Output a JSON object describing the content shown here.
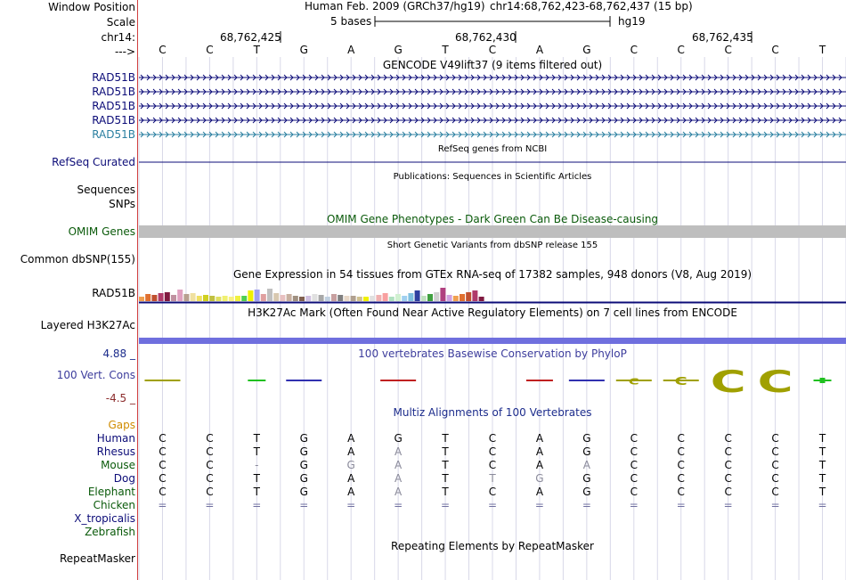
{
  "header": {
    "window_position_label": "Window Position",
    "assembly": "Human Feb. 2009 (GRCh37/hg19)",
    "position": "chr14:68,762,423-68,762,437 (15 bp)",
    "scale_label": "Scale",
    "scale_text": "5 bases",
    "scale_db": "hg19",
    "chrom_label": "chr14:",
    "coords": [
      "68,762,425",
      "68,762,430",
      "68,762,435"
    ],
    "strand_label": "--->",
    "bases": [
      "C",
      "C",
      "T",
      "G",
      "A",
      "G",
      "T",
      "C",
      "A",
      "G",
      "C",
      "C",
      "C",
      "C",
      "T"
    ]
  },
  "tracks": {
    "gencode_title": "GENCODE V49lift37 (9 items filtered out)",
    "gencode_items": [
      "RAD51B",
      "RAD51B",
      "RAD51B",
      "RAD51B",
      "RAD51B"
    ],
    "refseq_title": "RefSeq genes from NCBI",
    "refseq_label": "RefSeq Curated",
    "pubs_title": "Publications: Sequences in Scientific Articles",
    "sequences_label": "Sequences",
    "snps_label": "SNPs",
    "omim_title": "OMIM Gene Phenotypes - Dark Green Can Be Disease-causing",
    "omim_label": "OMIM Genes",
    "dbsnp_title": "Short Genetic Variants from dbSNP release 155",
    "dbsnp_label": "Common dbSNP(155)",
    "gtex_title": "Gene Expression in 54 tissues from GTEx RNA-seq of 17382 samples, 948 donors (V8, Aug 2019)",
    "gtex_label": "RAD51B",
    "h3k27_title": "H3K27Ac Mark (Often Found Near Active Regulatory Elements) on 7 cell lines from ENCODE",
    "h3k27_label": "Layered H3K27Ac",
    "phylop_title": "100 vertebrates Basewise Conservation by PhyloP",
    "phylop_max": "4.88 _",
    "phylop_label": "100 Vert. Cons",
    "phylop_min": "-4.5 _",
    "multiz_title": "Multiz Alignments of 100 Vertebrates",
    "gaps_label": "Gaps",
    "species": [
      {
        "name": "Human",
        "bases": [
          "C",
          "C",
          "T",
          "G",
          "A",
          "G",
          "T",
          "C",
          "A",
          "G",
          "C",
          "C",
          "C",
          "C",
          "T"
        ]
      },
      {
        "name": "Rhesus",
        "bases": [
          "C",
          "C",
          "T",
          "G",
          "A",
          "A",
          "T",
          "C",
          "A",
          "G",
          "C",
          "C",
          "C",
          "C",
          "T"
        ]
      },
      {
        "name": "Mouse",
        "bases": [
          "C",
          "C",
          "-",
          "G",
          "G",
          "A",
          "T",
          "C",
          "A",
          "A",
          "C",
          "C",
          "C",
          "C",
          "T"
        ]
      },
      {
        "name": "Dog",
        "bases": [
          "C",
          "C",
          "T",
          "G",
          "A",
          "A",
          "T",
          "T",
          "G",
          "G",
          "C",
          "C",
          "C",
          "C",
          "T"
        ]
      },
      {
        "name": "Elephant",
        "bases": [
          "C",
          "C",
          "T",
          "G",
          "A",
          "A",
          "T",
          "C",
          "A",
          "G",
          "C",
          "C",
          "C",
          "C",
          "T"
        ]
      },
      {
        "name": "Chicken",
        "bases": [
          "=",
          "=",
          "=",
          "=",
          "=",
          "=",
          "=",
          "=",
          "=",
          "=",
          "=",
          "=",
          "=",
          "=",
          "="
        ]
      }
    ],
    "extra_species": [
      "X_tropicalis",
      "Zebrafish"
    ],
    "repeat_title": "Repeating Elements by RepeatMasker",
    "repeat_label": "RepeatMasker"
  },
  "colors": {
    "gencode": "#0c0c78",
    "gencode_last": "#2a7fa0",
    "refseq": "#0c0c78",
    "omim_bar": "#bebebe",
    "h3k27_bar": "#6f6fde",
    "phylop": "#3c3c9c",
    "gaps": "#d08c00",
    "grid_line": "#d8d8e8",
    "left_border": "#d24040"
  }
}
